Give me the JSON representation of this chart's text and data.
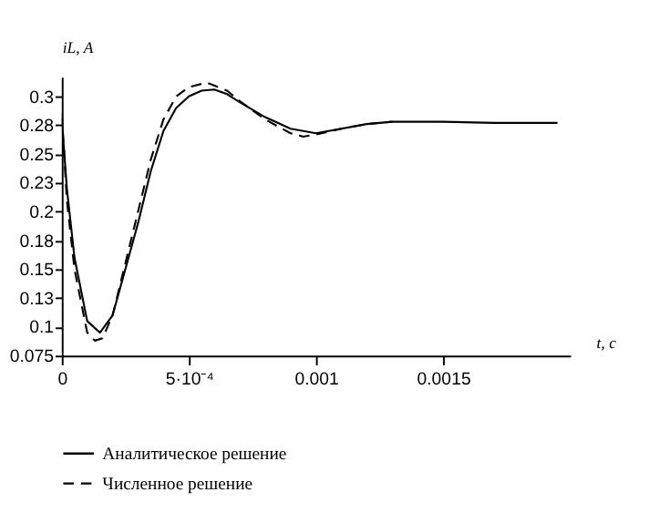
{
  "chart_data": {
    "type": "line",
    "xlabel": "t, c",
    "ylabel": "iL, A",
    "xlim": [
      0,
      0.002
    ],
    "ylim": [
      0.075,
      0.317
    ],
    "xticks": [
      0,
      {
        "value": 0.0005,
        "label": "5·10⁻⁴"
      },
      0.001,
      0.0015
    ],
    "yticks": [
      0.075,
      0.1,
      {
        "value": 0.125,
        "label": "0.13"
      },
      0.15,
      {
        "value": 0.175,
        "label": "0.18"
      },
      0.2,
      {
        "value": 0.225,
        "label": "0.23"
      },
      0.25,
      {
        "value": 0.275,
        "label": "0.28"
      },
      0.3
    ],
    "grid": false,
    "legend": "bottom",
    "marker": "none",
    "series": [
      {
        "name": "Аналитическое  решение",
        "color": "#000000",
        "line_style": "solid",
        "x": [
          0,
          2e-05,
          5e-05,
          0.0001,
          0.00015,
          0.0002,
          0.00025,
          0.0003,
          0.00035,
          0.0004,
          0.00045,
          0.0005,
          0.00055,
          0.0006,
          0.00065,
          0.0007,
          0.0008,
          0.0009,
          0.001,
          0.0011,
          0.0012,
          0.0013,
          0.0015,
          0.0017,
          0.00195
        ],
        "values": [
          0.28,
          0.22,
          0.16,
          0.105,
          0.095,
          0.11,
          0.15,
          0.19,
          0.235,
          0.27,
          0.29,
          0.3,
          0.305,
          0.306,
          0.302,
          0.295,
          0.282,
          0.272,
          0.268,
          0.272,
          0.276,
          0.278,
          0.278,
          0.277,
          0.277
        ]
      },
      {
        "name": "Численное решение",
        "color": "#000000",
        "line_style": "dashed",
        "x": [
          0,
          2e-05,
          5e-05,
          0.0001,
          0.00013,
          0.00016,
          0.0002,
          0.00025,
          0.0003,
          0.00035,
          0.0004,
          0.00045,
          0.0005,
          0.00057,
          0.00065,
          0.0007,
          0.0008,
          0.0009,
          0.00095,
          0.001,
          0.0011,
          0.0012,
          0.0013
        ],
        "values": [
          0.285,
          0.21,
          0.15,
          0.095,
          0.088,
          0.09,
          0.11,
          0.155,
          0.2,
          0.245,
          0.28,
          0.3,
          0.308,
          0.312,
          0.305,
          0.296,
          0.28,
          0.268,
          0.265,
          0.267,
          0.272,
          0.276,
          0.278
        ]
      }
    ]
  }
}
